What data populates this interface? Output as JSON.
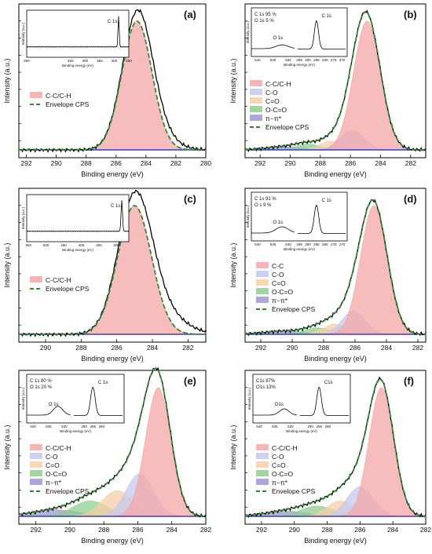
{
  "figure": {
    "background": "#ffffff",
    "colors": {
      "measured": "#000000",
      "envelope": "#2e8b2e",
      "baseline": "#3a3ad0",
      "CC": "#f4a7a7",
      "CO": "#c7c8ef",
      "C=O": "#f6cfa6",
      "OC=O": "#8fcf8f",
      "pipi": "#9c98d6"
    }
  },
  "chart_data": [
    {
      "panel": "(a)",
      "type": "line",
      "xlabel": "Binding energy (eV)",
      "ylabel": "Intensity (a.u.)",
      "xlim": [
        292.5,
        280
      ],
      "x_ticks": [
        "292",
        "290",
        "288",
        "286",
        "284",
        "282",
        "280"
      ],
      "legend": [
        "C-C/C-H",
        "Envelope CPS"
      ],
      "legend_position": "left-middle",
      "components": [
        {
          "name": "C-C/C-H",
          "center": 284.6,
          "amplitude": 1.0,
          "width": 1.0
        }
      ],
      "measured_tail": {
        "center": 283.5,
        "amplitude": 0.13,
        "width": 1.2
      },
      "inset": {
        "label": "C 1s",
        "xlabel": "Binding energy (eV)",
        "ylabel": "Intensity (a.u.)",
        "x_ticks": [
          "600",
          "450",
          "400",
          "350",
          "300",
          "250"
        ],
        "xlim": [
          600,
          250
        ],
        "peaks": [
          {
            "center": 285,
            "height": 0.9,
            "width": 2
          }
        ],
        "background": 0.12
      }
    },
    {
      "panel": "(b)",
      "type": "line",
      "xlabel": "Binding energy (eV)",
      "ylabel": "Intensity (a.u.)",
      "xlim": [
        293,
        281
      ],
      "x_ticks": [
        "292",
        "290",
        "288",
        "286",
        "284",
        "282"
      ],
      "legend": [
        "C-C/C-H",
        "C-O",
        "C=O",
        "O-C=O",
        "π−π*",
        "Envelope CPS"
      ],
      "legend_position": "center",
      "components": [
        {
          "name": "C-C/C-H",
          "center": 284.9,
          "amplitude": 1.0,
          "width": 0.9
        },
        {
          "name": "C-O",
          "center": 285.9,
          "amplitude": 0.15,
          "width": 0.8
        },
        {
          "name": "C=O",
          "center": 287.3,
          "amplitude": 0.07,
          "width": 0.7
        },
        {
          "name": "O-C=O",
          "center": 288.8,
          "amplitude": 0.045,
          "width": 0.8
        },
        {
          "name": "π−π*",
          "center": 290.4,
          "amplitude": 0.025,
          "width": 1.2
        }
      ],
      "inset": {
        "composition": [
          "C 1s    95 %",
          "O 1s      5 %"
        ],
        "labels": [
          "O 1s",
          "C 1s"
        ],
        "xlabel": "Binding energy (eV)",
        "ylabel": "Intensity (a.u.)",
        "x_ticks": [
          "540",
          "535",
          "530",
          "295",
          "290",
          "285",
          "280",
          "275",
          "270"
        ],
        "o1s_peak": {
          "center": 532,
          "height": 0.12,
          "width": 2
        },
        "c1s_peak": {
          "center": 285,
          "height": 0.9,
          "width": 1.2
        }
      }
    },
    {
      "panel": "(c)",
      "type": "line",
      "xlabel": "Binding energy (eV)",
      "ylabel": "Intensity (a.u.)",
      "xlim": [
        291.5,
        281
      ],
      "x_ticks": [
        "290",
        "288",
        "286",
        "284",
        "282"
      ],
      "legend": [
        "C-C/C-H",
        "Envelope CPS"
      ],
      "legend_position": "left-middle",
      "components": [
        {
          "name": "C-C/C-H",
          "center": 285.0,
          "amplitude": 1.0,
          "width": 0.95
        }
      ],
      "measured_tail": {
        "center": 283.7,
        "amplitude": 0.18,
        "width": 1.3
      },
      "inset": {
        "label": "C 1s",
        "xlabel": "Binding energy (eV)",
        "ylabel": "Intensity (a.u.)",
        "x_ticks": [
          "550",
          "500",
          "450",
          "400",
          "350",
          "300"
        ],
        "xlim": [
          555,
          265
        ],
        "peaks": [
          {
            "center": 285,
            "height": 0.9,
            "width": 2
          }
        ],
        "background": 0.12
      }
    },
    {
      "panel": "(d)",
      "type": "line",
      "xlabel": "Binding energy (eV)",
      "ylabel": "Intensity (a.u.)",
      "xlim": [
        293,
        281.5
      ],
      "x_ticks": [
        "292",
        "290",
        "288",
        "286",
        "284",
        "282"
      ],
      "legend": [
        "C-C",
        "C-O",
        "C=O",
        "O-C=O",
        "π−π*",
        "Envelope CPS"
      ],
      "legend_position": "left-middle",
      "components": [
        {
          "name": "C-C",
          "center": 284.8,
          "amplitude": 1.0,
          "width": 0.85
        },
        {
          "name": "C-O",
          "center": 286.1,
          "amplitude": 0.18,
          "width": 0.75
        },
        {
          "name": "C=O",
          "center": 287.3,
          "amplitude": 0.08,
          "width": 0.7
        },
        {
          "name": "O-C=O",
          "center": 288.4,
          "amplitude": 0.05,
          "width": 0.8
        },
        {
          "name": "π−π*",
          "center": 290.5,
          "amplitude": 0.025,
          "width": 1.3
        }
      ],
      "inset": {
        "composition": [
          "C 1s    91 %",
          "O s      9 %"
        ],
        "labels": [
          "O 1s",
          "C 1s"
        ],
        "xlabel": "Binding energy (eV)",
        "ylabel": "Intensity (a.u.)",
        "x_ticks": [
          "540",
          "535",
          "530",
          "295",
          "290",
          "285",
          "280",
          "275",
          "270"
        ],
        "o1s_peak": {
          "center": 532,
          "height": 0.2,
          "width": 2
        },
        "c1s_peak": {
          "center": 285,
          "height": 0.9,
          "width": 1.3
        }
      }
    },
    {
      "panel": "(e)",
      "type": "line",
      "xlabel": "Binding energy (eV)",
      "ylabel": "Intensity (a.u.)",
      "xlim": [
        293,
        282
      ],
      "x_ticks": [
        "292",
        "290",
        "288",
        "286",
        "284",
        "282"
      ],
      "legend": [
        "C-C/C-H",
        "C-O",
        "C=O",
        "O-C=O",
        "π−π*",
        "Envelope CPS"
      ],
      "legend_position": "left-middle",
      "components": [
        {
          "name": "C-C/C-H",
          "center": 284.8,
          "amplitude": 1.0,
          "width": 0.75
        },
        {
          "name": "C-O",
          "center": 285.9,
          "amplitude": 0.33,
          "width": 0.8
        },
        {
          "name": "C=O",
          "center": 287.2,
          "amplitude": 0.2,
          "width": 0.9
        },
        {
          "name": "O-C=O",
          "center": 288.8,
          "amplitude": 0.12,
          "width": 1.0
        },
        {
          "name": "π−π*",
          "center": 290.8,
          "amplitude": 0.05,
          "width": 1.4
        }
      ],
      "inset": {
        "composition": [
          "C 1s    80 %",
          "O 1s    20 %"
        ],
        "labels": [
          "O 1s",
          "C 1s"
        ],
        "xlabel": "Binding energy (eV)",
        "ylabel": "Intensity (a.u.)",
        "x_ticks": [
          "540",
          "535",
          "530",
          "290",
          "285",
          "280"
        ],
        "o1s_peak": {
          "center": 532,
          "height": 0.28,
          "width": 1.5
        },
        "c1s_peak": {
          "center": 285,
          "height": 0.9,
          "width": 1.3
        }
      }
    },
    {
      "panel": "(f)",
      "type": "line",
      "xlabel": "Binding energy (eV)",
      "ylabel": "Intensity (a.u.)",
      "xlim": [
        293,
        282
      ],
      "x_ticks": [
        "292",
        "290",
        "288",
        "286",
        "284",
        "282"
      ],
      "legend": [
        "C-C/C-H",
        "C-O",
        "C=O",
        "O-C=O",
        "π−π*",
        "Envelope CPS"
      ],
      "legend_position": "left-middle",
      "components": [
        {
          "name": "C-C/C-H",
          "center": 284.7,
          "amplitude": 1.0,
          "width": 0.75
        },
        {
          "name": "C-O",
          "center": 286.0,
          "amplitude": 0.23,
          "width": 0.8
        },
        {
          "name": "C=O",
          "center": 287.2,
          "amplitude": 0.12,
          "width": 0.8
        },
        {
          "name": "O-C=O",
          "center": 288.6,
          "amplitude": 0.08,
          "width": 1.0
        },
        {
          "name": "π−π*",
          "center": 290.5,
          "amplitude": 0.04,
          "width": 1.3
        }
      ],
      "inset": {
        "composition": [
          "C1s      87%",
          "O1s      13%"
        ],
        "labels": [
          "O1s",
          "C1s"
        ],
        "xlabel": "Binding energy (eV)",
        "ylabel": "Intensity (a.u.)",
        "x_ticks": [
          "540",
          "535",
          "530",
          "290",
          "285",
          "280"
        ],
        "o1s_peak": {
          "center": 532,
          "height": 0.2,
          "width": 1.5
        },
        "c1s_peak": {
          "center": 285,
          "height": 0.9,
          "width": 1.3
        }
      }
    }
  ]
}
